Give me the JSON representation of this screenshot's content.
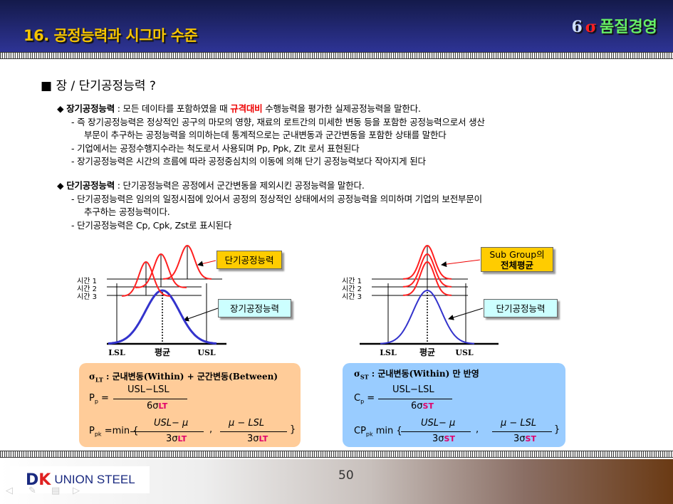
{
  "header": {
    "title": "16. 공정능력과 시그마 수준",
    "brand_six": "6",
    "brand_sigma": "σ",
    "brand_text": "품질경영"
  },
  "section_title": "■ 장 / 단기공정능력 ?",
  "long_term": {
    "term": "장기공정능력",
    "def_pre": " : 모든 데이타를 포함하였을 때 ",
    "highlight": "규격대비",
    "def_post": " 수행능력을 평가한 실제공정능력을 말한다.",
    "lines": [
      "- 즉 장기공정능력은 정상적인 공구의 마모의 영향, 재료의 로트간의 미세한 변동 등을 포함한 공정능력으로서 생산",
      "부문이 추구하는 공정능력을 의미하는데 통계적으로는 군내변동과 군간변동을 포함한 상태를 말한다",
      "- 기업에서는 공정수행지수라는 척도로서 사용되며 Pp, Ppk, Zlt 로서 표현된다",
      "- 장기공정능력은 시간의 흐름에 따라 공정중심치의 이동에 의해 단기 공정능력보다 작아지게 된다"
    ]
  },
  "short_term": {
    "term": "단기공정능력",
    "def": " : 단기공정능력은 공정에서 군간변동을 제외시킨 공정능력을 말한다.",
    "lines": [
      "- 단기공정능력은 임의의 일정시점에 있어서 공정의 정상적인 상태에서의 공정능력을 의미하며 기업의 보전부문이",
      "추구하는 공정능력이다.",
      "- 단기공정능력은 Cp, Cpk, Zst로 표시된다"
    ]
  },
  "diagram_left": {
    "time_labels": [
      "시간 1",
      "시간 2",
      "시간 3"
    ],
    "axis": [
      "LSL",
      "평균",
      "USL"
    ],
    "callout_short": "단기공정능력",
    "callout_long": "장기공정능력"
  },
  "diagram_right": {
    "time_labels": [
      "시간 1",
      "시간 2",
      "시간 3"
    ],
    "axis": [
      "LSL",
      "평균",
      "USL"
    ],
    "callout_sub_1": "Sub Group의",
    "callout_sub_2": "전체평균",
    "callout_short": "단기공정능력"
  },
  "formula_lt": {
    "sigma": "σ",
    "sigma_sub": "LT",
    "desc": " : 군내변동(Within) + 군간변동(Between)",
    "pp": "P",
    "pp_sub": "p",
    "eq": " =",
    "num": "USL−LSL",
    "den": "6σ",
    "den_sub": "LT",
    "ppk": "P",
    "ppk_sub": "pk",
    "ppk_eq": " =min {",
    "n1": "USL− μ",
    "d1": "3σ",
    "n2": "μ  − LSL",
    "d2": "3σ",
    "comma": ",",
    "close": "}"
  },
  "formula_st": {
    "sigma": "σ",
    "sigma_sub": "ST",
    "desc": " : 군내변동(Within) 만 반영",
    "cp": "C",
    "cp_sub": "p",
    "eq": " =",
    "num": "USL−LSL",
    "den": "6σ",
    "den_sub": "ST",
    "cpk": "CP",
    "cpk_sub": "pk",
    "cpk_eq": " min {",
    "n1": "USL− μ",
    "d1": "3σ",
    "n2": "μ  − LSL",
    "d2": "3σ",
    "comma": ",",
    "close": "}"
  },
  "footer": {
    "logo_dk_d": "D",
    "logo_dk_k": "K",
    "logo_text": "UNION STEEL",
    "page_number": "50"
  },
  "colors": {
    "header_bg": "#2e3496",
    "title": "#f5c400",
    "red_curve": "#ff2020",
    "blue_curve": "#3333cc",
    "callout_gold": "#ffcc00",
    "callout_cyan": "#ccffff",
    "box_orange": "#ffcc99",
    "box_blue": "#99ccff"
  }
}
